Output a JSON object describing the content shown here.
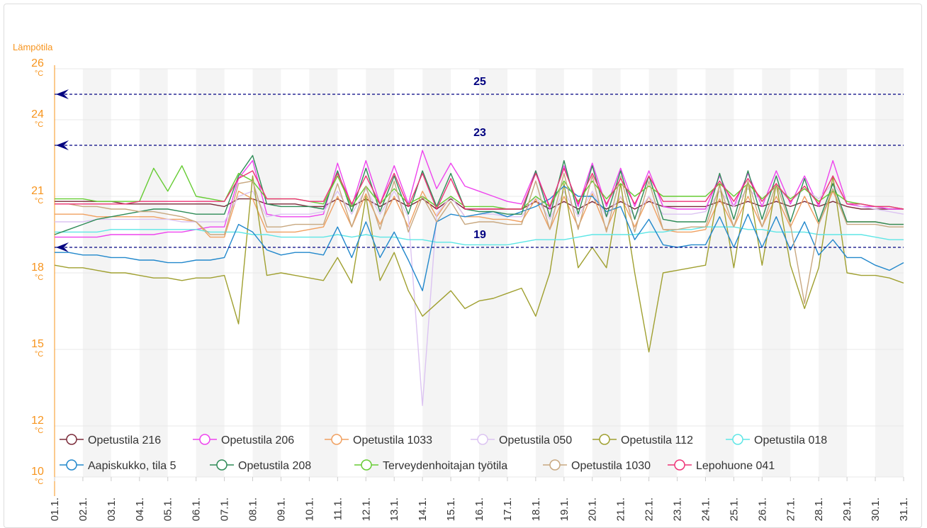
{
  "chart_data": {
    "type": "line",
    "y_title": "Lämpötila",
    "y_unit": "°C",
    "ylim": [
      10,
      26
    ],
    "yticks": [
      10,
      12,
      15,
      18,
      21,
      24,
      26
    ],
    "xlim": [
      1,
      31
    ],
    "xticks": [
      {
        "value": 1,
        "label": "01.1."
      },
      {
        "value": 2,
        "label": "02.1."
      },
      {
        "value": 3,
        "label": "03.1."
      },
      {
        "value": 4,
        "label": "04.1."
      },
      {
        "value": 5,
        "label": "05.1."
      },
      {
        "value": 6,
        "label": "06.1."
      },
      {
        "value": 7,
        "label": "07.1."
      },
      {
        "value": 8,
        "label": "08.1."
      },
      {
        "value": 9,
        "label": "09.1."
      },
      {
        "value": 10,
        "label": "10.1."
      },
      {
        "value": 11,
        "label": "11.1."
      },
      {
        "value": 12,
        "label": "12.1."
      },
      {
        "value": 13,
        "label": "13.1."
      },
      {
        "value": 14,
        "label": "14.1."
      },
      {
        "value": 15,
        "label": "15.1."
      },
      {
        "value": 16,
        "label": "16.1."
      },
      {
        "value": 17,
        "label": "17.1."
      },
      {
        "value": 18,
        "label": "18.1."
      },
      {
        "value": 19,
        "label": "19.1."
      },
      {
        "value": 20,
        "label": "20.1."
      },
      {
        "value": 21,
        "label": "21.1."
      },
      {
        "value": 22,
        "label": "22.1."
      },
      {
        "value": 23,
        "label": "23.1."
      },
      {
        "value": 24,
        "label": "24.1."
      },
      {
        "value": 25,
        "label": "25.1."
      },
      {
        "value": 26,
        "label": "26.1."
      },
      {
        "value": 27,
        "label": "27.1."
      },
      {
        "value": 28,
        "label": "28.1."
      },
      {
        "value": 29,
        "label": "29.1."
      },
      {
        "value": 30,
        "label": "30.1."
      },
      {
        "value": 31,
        "label": "31.1."
      }
    ],
    "grid": true,
    "reference_lines": [
      25,
      23,
      19
    ],
    "reference_color": "#000080",
    "axis_color": "#f7941d",
    "x": [
      1,
      1.5,
      2,
      2.5,
      3,
      3.5,
      4,
      4.5,
      5,
      5.5,
      6,
      6.5,
      7,
      7.5,
      8,
      8.5,
      9,
      9.5,
      10,
      10.5,
      11,
      11.5,
      12,
      12.5,
      13,
      13.5,
      14,
      14.5,
      15,
      15.5,
      16,
      16.5,
      17,
      17.5,
      18,
      18.5,
      19,
      19.5,
      20,
      20.5,
      21,
      21.5,
      22,
      22.5,
      23,
      23.5,
      24,
      24.5,
      25,
      25.5,
      26,
      26.5,
      27,
      27.5,
      28,
      28.5,
      29,
      29.5,
      30,
      30.5,
      31
    ],
    "legend": "bottom",
    "series": [
      {
        "name": "Opetustila 216",
        "color": "#7b2b3a",
        "values": [
          20.8,
          20.8,
          20.8,
          20.8,
          20.8,
          20.7,
          20.7,
          20.7,
          20.7,
          20.7,
          20.7,
          20.7,
          20.6,
          20.9,
          20.9,
          20.7,
          20.7,
          20.7,
          20.6,
          20.6,
          20.9,
          20.6,
          20.9,
          20.6,
          20.9,
          20.6,
          20.9,
          20.5,
          20.9,
          20.5,
          20.5,
          20.5,
          20.5,
          20.5,
          20.8,
          20.5,
          20.8,
          20.5,
          20.8,
          20.5,
          20.8,
          20.5,
          20.8,
          20.6,
          20.6,
          20.6,
          20.6,
          20.8,
          20.6,
          20.8,
          20.6,
          20.8,
          20.6,
          20.8,
          20.6,
          20.8,
          20.6,
          20.5,
          20.5,
          20.5,
          20.5
        ]
      },
      {
        "name": "Opetustila 206",
        "color": "#ee44ee",
        "values": [
          19.4,
          19.4,
          19.4,
          19.4,
          19.5,
          19.5,
          19.5,
          19.5,
          19.6,
          19.6,
          19.7,
          19.8,
          19.8,
          21.7,
          22.4,
          20.3,
          20.2,
          20.2,
          20.2,
          20.3,
          22.3,
          20.6,
          22.4,
          20.7,
          22.2,
          20.7,
          22.8,
          21.3,
          22.3,
          21.4,
          21.2,
          21.0,
          20.8,
          20.7,
          22.0,
          20.5,
          22.2,
          20.6,
          22.3,
          20.6,
          22.1,
          20.6,
          22.0,
          20.6,
          20.5,
          20.5,
          20.5,
          21.8,
          20.6,
          21.9,
          20.6,
          22.0,
          20.7,
          21.8,
          20.6,
          22.4,
          20.7,
          20.6,
          20.6,
          20.5,
          20.5
        ]
      },
      {
        "name": "Opetustila 1033",
        "color": "#f0a060",
        "values": [
          20.3,
          20.3,
          20.3,
          20.2,
          20.2,
          20.2,
          20.2,
          20.2,
          20.1,
          20.1,
          20.0,
          19.4,
          19.4,
          21.2,
          20.9,
          19.6,
          19.6,
          19.6,
          19.7,
          19.8,
          21.0,
          19.8,
          21.1,
          19.9,
          21.0,
          19.8,
          21.2,
          20.2,
          21.0,
          20.2,
          20.2,
          20.1,
          20.1,
          20.0,
          20.9,
          19.7,
          21.0,
          19.8,
          21.1,
          19.7,
          21.0,
          19.8,
          21.0,
          19.7,
          19.6,
          19.6,
          19.7,
          20.9,
          19.8,
          21.0,
          19.8,
          21.0,
          19.8,
          21.0,
          19.9,
          21.2,
          20.0,
          20.0,
          20.0,
          19.9,
          19.9
        ]
      },
      {
        "name": "Opetustila 050",
        "color": "#dcc4f2",
        "values": [
          20.0,
          20.0,
          20.0,
          20.1,
          20.1,
          20.1,
          20.1,
          20.1,
          20.1,
          20.0,
          20.0,
          20.0,
          20.0,
          21.0,
          21.2,
          20.2,
          20.3,
          20.3,
          20.3,
          20.4,
          21.2,
          20.3,
          21.3,
          20.3,
          21.2,
          20.2,
          12.8,
          20.3,
          21.0,
          20.2,
          20.3,
          20.3,
          20.2,
          20.2,
          21.0,
          20.1,
          21.2,
          20.2,
          21.2,
          20.2,
          21.0,
          20.2,
          21.0,
          20.3,
          20.3,
          20.3,
          20.4,
          21.2,
          20.6,
          21.3,
          20.8,
          21.4,
          20.8,
          21.3,
          20.9,
          21.5,
          20.8,
          20.6,
          20.5,
          20.4,
          20.3
        ]
      },
      {
        "name": "Opetustila 112",
        "color": "#a0a030",
        "values": [
          18.3,
          18.2,
          18.2,
          18.1,
          18.0,
          18.0,
          17.9,
          17.8,
          17.8,
          17.7,
          17.8,
          17.8,
          17.9,
          16.0,
          21.8,
          17.9,
          18.0,
          17.9,
          17.8,
          17.7,
          18.6,
          17.6,
          21.0,
          17.7,
          18.8,
          17.3,
          16.3,
          16.8,
          17.3,
          16.6,
          16.9,
          17.0,
          17.2,
          17.4,
          16.3,
          18.0,
          21.5,
          18.2,
          19.0,
          18.2,
          21.5,
          18.0,
          14.9,
          18.0,
          18.1,
          18.2,
          18.3,
          21.5,
          18.2,
          21.6,
          18.3,
          21.5,
          18.3,
          16.6,
          18.2,
          21.8,
          18.0,
          17.9,
          17.9,
          17.8,
          17.6
        ]
      },
      {
        "name": "Opetustila 018",
        "color": "#5ee6e6",
        "values": [
          19.6,
          19.6,
          19.6,
          19.6,
          19.7,
          19.7,
          19.7,
          19.7,
          19.7,
          19.7,
          19.7,
          19.6,
          19.6,
          19.6,
          19.5,
          19.5,
          19.4,
          19.4,
          19.4,
          19.4,
          19.5,
          19.4,
          19.5,
          19.4,
          19.4,
          19.3,
          19.3,
          19.2,
          19.2,
          19.1,
          19.1,
          19.1,
          19.1,
          19.2,
          19.3,
          19.3,
          19.3,
          19.4,
          19.5,
          19.5,
          19.5,
          19.5,
          19.6,
          19.6,
          19.7,
          19.7,
          19.8,
          19.8,
          19.8,
          19.7,
          19.7,
          19.6,
          19.6,
          19.6,
          19.5,
          19.5,
          19.5,
          19.5,
          19.4,
          19.3,
          19.3
        ]
      },
      {
        "name": "Aapiskukko, tila 5",
        "color": "#2288cc",
        "values": [
          18.8,
          18.8,
          18.7,
          18.7,
          18.6,
          18.6,
          18.5,
          18.5,
          18.4,
          18.4,
          18.5,
          18.5,
          18.6,
          19.9,
          19.6,
          18.9,
          18.7,
          18.8,
          18.8,
          18.7,
          19.8,
          18.6,
          20.0,
          18.6,
          19.6,
          18.5,
          17.3,
          20.0,
          20.3,
          20.2,
          20.3,
          20.4,
          20.2,
          20.4,
          20.6,
          20.9,
          21.4,
          21.0,
          21.0,
          20.4,
          20.6,
          19.3,
          20.1,
          19.1,
          19.0,
          19.1,
          19.1,
          20.2,
          19.0,
          20.3,
          19.0,
          20.2,
          18.9,
          20.0,
          18.7,
          19.3,
          18.6,
          18.6,
          18.3,
          18.1,
          18.4
        ]
      },
      {
        "name": "Opetustila 208",
        "color": "#2e8b57",
        "values": [
          19.5,
          19.7,
          19.9,
          20.1,
          20.2,
          20.3,
          20.4,
          20.5,
          20.5,
          20.4,
          20.3,
          20.3,
          20.3,
          21.8,
          22.6,
          20.7,
          20.6,
          20.6,
          20.6,
          20.5,
          22.0,
          20.4,
          22.1,
          20.4,
          21.8,
          20.3,
          22.0,
          20.6,
          21.9,
          20.5,
          20.4,
          20.4,
          20.3,
          20.3,
          22.0,
          20.2,
          22.4,
          20.3,
          22.2,
          20.2,
          22.0,
          20.1,
          21.8,
          20.1,
          20.0,
          20.0,
          20.0,
          21.9,
          20.1,
          22.0,
          20.1,
          21.8,
          20.0,
          21.7,
          20.0,
          21.5,
          20.0,
          20.0,
          20.0,
          19.9,
          19.9
        ]
      },
      {
        "name": "Terveydenhoitajan työtila",
        "color": "#66cc33",
        "values": [
          20.9,
          20.9,
          20.9,
          20.8,
          20.8,
          20.8,
          20.8,
          22.1,
          21.2,
          22.2,
          21.0,
          20.9,
          20.8,
          21.9,
          21.6,
          20.9,
          20.9,
          20.9,
          20.8,
          20.7,
          21.8,
          20.6,
          21.4,
          20.7,
          21.3,
          20.7,
          21.0,
          20.6,
          21.0,
          20.6,
          20.6,
          20.6,
          20.5,
          20.5,
          21.0,
          20.6,
          21.6,
          20.8,
          21.6,
          20.9,
          21.5,
          21.0,
          21.4,
          21.0,
          21.0,
          21.0,
          21.0,
          21.5,
          21.0,
          21.5,
          20.9,
          21.4,
          20.9,
          21.3,
          20.8,
          21.2,
          20.8,
          20.7,
          20.6,
          20.6,
          20.5
        ]
      },
      {
        "name": "Opetustila 1030",
        "color": "#c8a880",
        "values": [
          20.7,
          20.7,
          20.6,
          20.6,
          20.5,
          20.5,
          20.4,
          20.4,
          20.3,
          20.2,
          20.0,
          19.5,
          19.5,
          21.5,
          21.6,
          19.8,
          19.8,
          19.9,
          19.9,
          19.9,
          21.5,
          19.8,
          21.4,
          19.7,
          21.6,
          19.6,
          21.0,
          20.0,
          20.8,
          19.9,
          20.0,
          20.0,
          19.9,
          19.9,
          21.6,
          19.7,
          21.9,
          19.7,
          21.8,
          19.6,
          21.8,
          19.6,
          21.6,
          19.7,
          19.7,
          19.8,
          19.8,
          21.4,
          19.8,
          21.6,
          19.8,
          21.5,
          19.9,
          16.8,
          19.9,
          21.3,
          19.9,
          19.9,
          19.9,
          19.8,
          19.8
        ]
      },
      {
        "name": "Lepohuone 041",
        "color": "#ee3377",
        "values": [
          20.7,
          20.7,
          20.7,
          20.7,
          20.7,
          20.7,
          20.8,
          20.8,
          20.8,
          20.8,
          20.8,
          20.8,
          20.8,
          21.7,
          22.0,
          20.9,
          20.9,
          20.9,
          20.8,
          20.8,
          21.9,
          20.7,
          21.8,
          20.7,
          21.9,
          20.6,
          21.9,
          20.5,
          21.7,
          20.5,
          20.5,
          20.5,
          20.5,
          20.5,
          21.9,
          20.6,
          22.1,
          20.7,
          21.9,
          20.7,
          21.7,
          20.7,
          21.8,
          20.8,
          20.8,
          20.8,
          20.8,
          21.6,
          20.8,
          21.7,
          20.8,
          21.5,
          20.8,
          21.4,
          20.7,
          21.8,
          20.7,
          20.7,
          20.6,
          20.6,
          20.5
        ]
      }
    ]
  }
}
